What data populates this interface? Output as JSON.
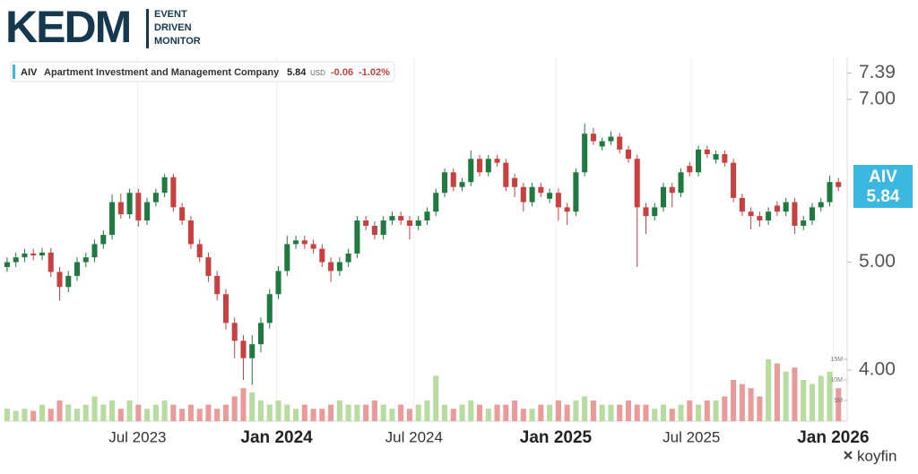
{
  "logo": {
    "name": "KEDM",
    "lines": [
      "EVENT",
      "DRIVEN",
      "MONITOR"
    ]
  },
  "legend": {
    "ticker": "AIV",
    "company": "Apartment Investment and Management Company",
    "price": 5.84,
    "currency": "USD",
    "change": -0.06,
    "change_pct": "-1.02%"
  },
  "price_tag": {
    "ticker": "AIV",
    "price": 5.84
  },
  "brand": "koyfin",
  "chart_data": {
    "type": "candlestick",
    "log_scale": true,
    "up_color": "#1f7a3f",
    "down_color": "#c8403f",
    "volume_up_color": "#b8dba0",
    "volume_down_color": "#eb9a9a",
    "xlim": [
      -0.3,
      96
    ],
    "xticks": [
      {
        "value": 14.9,
        "label": "Jul 2023"
      },
      {
        "value": 30.8,
        "label": "Jan 2024"
      },
      {
        "value": 46.5,
        "label": "Jul 2024"
      },
      {
        "value": 62.7,
        "label": "Jan 2025"
      },
      {
        "value": 78.2,
        "label": "Jul 2025"
      },
      {
        "value": 94.4,
        "label": "Jan 2026"
      }
    ],
    "ylim": [
      3.6,
      7.55
    ],
    "yticks": [
      {
        "value": 4,
        "label": "4.00"
      },
      {
        "value": 5,
        "label": "5.00"
      },
      {
        "value": 7,
        "label": "7.00"
      },
      {
        "value": 7.39,
        "label": "7.39"
      }
    ],
    "volume_lim": [
      0,
      16300000
    ],
    "volume_ticks": [
      {
        "value": 5000000,
        "label": "5M"
      },
      {
        "value": 10000000,
        "label": "10M"
      },
      {
        "value": 15000000,
        "label": "15M"
      }
    ],
    "open": [
      4.95,
      5.0,
      5.05,
      5.09,
      5.07,
      5.1,
      4.9,
      4.75,
      4.86,
      5.0,
      5.05,
      5.19,
      5.29,
      5.66,
      5.52,
      5.77,
      5.45,
      5.66,
      5.77,
      5.96,
      5.6,
      5.45,
      5.19,
      5.05,
      4.86,
      4.68,
      4.41,
      4.25,
      4.1,
      4.22,
      4.41,
      4.68,
      4.91,
      5.19,
      5.23,
      5.19,
      5.14,
      5.0,
      4.91,
      5.0,
      5.09,
      5.45,
      5.39,
      5.29,
      5.45,
      5.5,
      5.45,
      5.39,
      5.45,
      5.55,
      5.77,
      6.02,
      5.84,
      5.9,
      6.19,
      6.02,
      6.19,
      6.14,
      5.95,
      5.84,
      5.66,
      5.84,
      5.7,
      5.77,
      5.6,
      5.55,
      6.02,
      6.52,
      6.35,
      6.42,
      6.48,
      6.31,
      6.19,
      5.6,
      5.5,
      5.6,
      5.84,
      5.77,
      6.1,
      6.02,
      6.31,
      6.18,
      6.25,
      6.14,
      5.71,
      5.55,
      5.5,
      5.45,
      5.62,
      5.55,
      5.66,
      5.39,
      5.45,
      5.6,
      5.66,
      5.9
    ],
    "high": [
      5.05,
      5.1,
      5.14,
      5.14,
      5.15,
      5.15,
      4.95,
      4.91,
      5.05,
      5.1,
      5.24,
      5.34,
      5.75,
      5.76,
      5.82,
      5.82,
      5.71,
      5.82,
      6.0,
      6.0,
      5.65,
      5.5,
      5.24,
      5.1,
      4.91,
      4.73,
      4.46,
      4.3,
      4.3,
      4.46,
      4.73,
      4.96,
      5.28,
      5.28,
      5.28,
      5.24,
      5.19,
      5.05,
      5.05,
      5.14,
      5.5,
      5.5,
      5.44,
      5.5,
      5.55,
      5.55,
      5.5,
      5.5,
      5.6,
      5.82,
      6.07,
      6.07,
      5.95,
      6.3,
      6.24,
      6.24,
      6.24,
      6.19,
      6.0,
      5.89,
      5.89,
      5.89,
      5.82,
      5.82,
      5.65,
      6.07,
      6.66,
      6.6,
      6.47,
      6.55,
      6.53,
      6.36,
      6.24,
      5.65,
      5.65,
      5.89,
      5.89,
      6.07,
      6.15,
      6.36,
      6.36,
      6.3,
      6.3,
      6.19,
      5.76,
      5.6,
      5.55,
      5.6,
      5.67,
      5.71,
      5.71,
      5.5,
      5.65,
      5.71,
      5.98,
      5.95
    ],
    "low": [
      4.9,
      4.95,
      5.0,
      5.02,
      5.02,
      4.85,
      4.62,
      4.7,
      4.81,
      4.95,
      5.0,
      5.14,
      5.24,
      5.47,
      5.47,
      5.38,
      5.4,
      5.61,
      5.72,
      5.55,
      5.4,
      5.14,
      5.0,
      4.8,
      4.62,
      4.35,
      4.1,
      3.92,
      3.88,
      4.15,
      4.36,
      4.63,
      4.86,
      5.14,
      5.14,
      5.09,
      4.95,
      4.8,
      4.86,
      4.95,
      5.04,
      5.34,
      5.24,
      5.24,
      5.4,
      5.4,
      5.24,
      5.34,
      5.4,
      5.5,
      5.72,
      5.79,
      5.79,
      5.85,
      5.97,
      5.97,
      6.09,
      5.79,
      5.72,
      5.55,
      5.61,
      5.72,
      5.65,
      5.45,
      5.4,
      5.5,
      5.97,
      6.37,
      6.3,
      6.37,
      6.26,
      6.14,
      4.95,
      5.3,
      5.45,
      5.55,
      5.6,
      5.72,
      5.97,
      5.97,
      6.2,
      6.13,
      6.09,
      5.66,
      5.5,
      5.35,
      5.38,
      5.4,
      5.5,
      5.5,
      5.3,
      5.34,
      5.4,
      5.55,
      5.61,
      5.79
    ],
    "close": [
      5.0,
      5.05,
      5.09,
      5.07,
      5.1,
      4.9,
      4.75,
      4.86,
      5.0,
      5.05,
      5.19,
      5.29,
      5.66,
      5.52,
      5.77,
      5.45,
      5.66,
      5.77,
      5.96,
      5.6,
      5.45,
      5.19,
      5.05,
      4.86,
      4.68,
      4.41,
      4.25,
      4.1,
      4.22,
      4.41,
      4.68,
      4.91,
      5.19,
      5.23,
      5.19,
      5.14,
      5.0,
      4.91,
      5.0,
      5.09,
      5.45,
      5.39,
      5.29,
      5.45,
      5.5,
      5.45,
      5.39,
      5.45,
      5.55,
      5.77,
      6.02,
      5.84,
      5.9,
      6.19,
      6.02,
      6.19,
      6.14,
      5.84,
      5.84,
      5.66,
      5.84,
      5.77,
      5.77,
      5.6,
      5.55,
      6.02,
      6.52,
      6.42,
      6.42,
      6.48,
      6.31,
      6.19,
      5.6,
      5.5,
      5.6,
      5.84,
      5.77,
      6.02,
      6.02,
      6.31,
      6.25,
      6.25,
      6.14,
      5.71,
      5.55,
      5.5,
      5.45,
      5.55,
      5.55,
      5.66,
      5.39,
      5.45,
      5.6,
      5.66,
      5.9,
      5.84
    ],
    "volume": [
      3000000,
      2500000,
      3000000,
      2500000,
      4000000,
      3000000,
      5000000,
      4000000,
      3000000,
      4000000,
      6000000,
      4000000,
      5000000,
      3000000,
      5000000,
      4000000,
      3000000,
      4000000,
      5000000,
      4000000,
      3000000,
      4000000,
      3000000,
      4000000,
      3000000,
      4000000,
      6000000,
      8000000,
      7000000,
      5000000,
      4000000,
      5000000,
      4000000,
      3000000,
      4000000,
      3000000,
      3000000,
      4000000,
      5000000,
      4000000,
      4000000,
      4000000,
      5000000,
      4000000,
      3000000,
      4000000,
      3000000,
      4000000,
      5000000,
      11000000,
      4000000,
      3000000,
      4000000,
      5000000,
      4000000,
      3000000,
      4000000,
      4000000,
      5000000,
      3000000,
      3000000,
      4000000,
      4000000,
      5000000,
      4000000,
      5000000,
      6000000,
      5000000,
      4000000,
      4000000,
      4000000,
      5000000,
      4000000,
      4000000,
      3000000,
      4000000,
      3000000,
      4000000,
      5000000,
      4000000,
      5000000,
      5000000,
      6000000,
      10000000,
      9000000,
      8000000,
      6000000,
      15000000,
      14000000,
      12000000,
      13000000,
      10000000,
      9000000,
      11000000,
      12000000,
      8000000
    ]
  }
}
